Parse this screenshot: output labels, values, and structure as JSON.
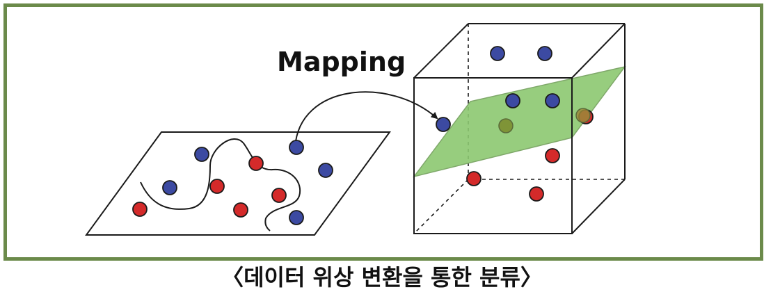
{
  "diagram": {
    "mapping_label": "Mapping",
    "caption": "〈데이터 위상 변환을 통한 분류〉"
  },
  "colors": {
    "frame_border": "#6b8a4a",
    "blue_point": "#3c4aa2",
    "red_point": "#d42a2a",
    "plane_fill": "#8cc870",
    "line": "#1a1a1a"
  }
}
